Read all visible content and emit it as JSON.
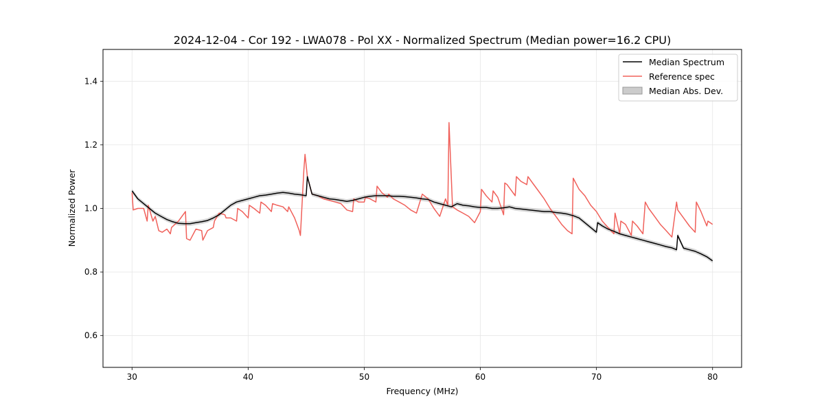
{
  "chart_data": {
    "type": "line",
    "title": "2024-12-04 - Cor 192 - LWA078 - Pol XX - Normalized Spectrum (Median power=16.2 CPU)",
    "xlabel": "Frequency (MHz)",
    "ylabel": "Normalized Power",
    "xlim": [
      27.5,
      82.5
    ],
    "ylim": [
      0.5,
      1.5
    ],
    "xticks": [
      30,
      40,
      50,
      60,
      70,
      80
    ],
    "yticks": [
      0.6,
      0.8,
      1.0,
      1.2,
      1.4
    ],
    "xtick_labels": [
      "30",
      "40",
      "50",
      "60",
      "70",
      "80"
    ],
    "ytick_labels": [
      "0.6",
      "0.8",
      "1.0",
      "1.2",
      "1.4"
    ],
    "grid": true,
    "legend_position": "top-right",
    "legend": [
      "Median Spectrum",
      "Reference spec",
      "Median Abs. Dev."
    ],
    "series": [
      {
        "name": "Median Spectrum",
        "color": "#000000",
        "x": [
          30,
          30.5,
          31,
          31.5,
          32,
          32.5,
          33,
          33.5,
          34,
          34.5,
          35,
          35.5,
          36,
          36.5,
          37,
          37.5,
          38,
          38.5,
          39,
          39.5,
          40,
          40.5,
          41,
          41.5,
          42,
          42.5,
          43,
          43.5,
          44,
          44.5,
          45,
          45.1,
          45.5,
          46,
          46.5,
          47,
          47.5,
          48,
          48.5,
          49,
          49.5,
          50,
          50.5,
          51,
          51.5,
          52,
          52.5,
          53,
          53.5,
          54,
          54.5,
          55,
          55.5,
          56,
          56.5,
          57,
          57.5,
          58,
          58.5,
          59,
          59.5,
          60,
          60.5,
          61,
          61.5,
          62,
          62.5,
          63,
          63.5,
          64,
          64.5,
          65,
          65.5,
          66,
          66.5,
          67,
          67.5,
          68,
          68.5,
          69,
          69.5,
          70,
          70.1,
          70.5,
          71,
          71.5,
          72,
          72.5,
          73,
          73.5,
          74,
          74.5,
          75,
          75.5,
          76,
          76.5,
          76.9,
          77,
          77.5,
          78,
          78.5,
          79,
          79.5,
          80
        ],
        "values": [
          1.055,
          1.03,
          1.015,
          1.0,
          0.985,
          0.975,
          0.965,
          0.958,
          0.953,
          0.952,
          0.952,
          0.955,
          0.958,
          0.962,
          0.97,
          0.98,
          0.995,
          1.01,
          1.02,
          1.025,
          1.03,
          1.035,
          1.04,
          1.042,
          1.045,
          1.048,
          1.05,
          1.048,
          1.045,
          1.043,
          1.04,
          1.1,
          1.045,
          1.04,
          1.035,
          1.03,
          1.028,
          1.025,
          1.022,
          1.025,
          1.03,
          1.035,
          1.038,
          1.04,
          1.04,
          1.04,
          1.038,
          1.038,
          1.037,
          1.035,
          1.033,
          1.03,
          1.028,
          1.02,
          1.015,
          1.01,
          1.005,
          1.015,
          1.01,
          1.008,
          1.005,
          1.003,
          1.003,
          1.0,
          1.0,
          1.002,
          1.005,
          1.0,
          0.998,
          0.996,
          0.994,
          0.992,
          0.99,
          0.99,
          0.987,
          0.985,
          0.982,
          0.977,
          0.97,
          0.955,
          0.94,
          0.925,
          0.955,
          0.945,
          0.935,
          0.928,
          0.92,
          0.915,
          0.91,
          0.905,
          0.9,
          0.895,
          0.89,
          0.885,
          0.88,
          0.876,
          0.87,
          0.915,
          0.875,
          0.87,
          0.865,
          0.857,
          0.848,
          0.835
        ]
      },
      {
        "name": "Reference spec",
        "color": "#f0605a",
        "x": [
          30,
          30.1,
          30.5,
          31,
          31.3,
          31.4,
          31.8,
          32,
          32.3,
          32.6,
          33,
          33.3,
          33.4,
          34,
          34.6,
          34.7,
          35,
          35.5,
          36,
          36.1,
          36.5,
          37,
          37.1,
          37.5,
          38,
          38.1,
          38.5,
          39,
          39.1,
          39.5,
          40,
          40.1,
          40.5,
          41,
          41.1,
          41.5,
          42,
          42.1,
          42.5,
          43,
          43.4,
          43.5,
          44,
          44.4,
          44.5,
          44.8,
          44.9,
          45.1,
          45.5,
          46,
          46.5,
          47,
          47.5,
          48,
          48.5,
          49,
          49.1,
          49.5,
          50,
          50.1,
          50.5,
          51,
          51.1,
          51.5,
          52,
          52.1,
          52.5,
          53,
          53.5,
          54,
          54.5,
          55,
          55.5,
          56,
          56.5,
          57,
          57.2,
          57.3,
          57.6,
          58,
          58.5,
          59,
          59.5,
          60,
          60.1,
          60.5,
          61,
          61.1,
          61.5,
          62,
          62.1,
          62.3,
          62.5,
          63,
          63.1,
          63.5,
          64,
          64.1,
          64.5,
          65,
          65.5,
          66,
          66.5,
          67,
          67.5,
          67.9,
          68,
          68.5,
          69,
          69.5,
          70,
          70.5,
          71,
          71.5,
          71.6,
          72,
          72.1,
          72.5,
          73,
          73.1,
          73.5,
          74,
          74.2,
          74.5,
          75,
          75.5,
          76,
          76.5,
          76.9,
          77,
          77.5,
          78,
          78.5,
          78.6,
          79,
          79.5,
          79.6,
          80
        ],
        "values": [
          1.05,
          0.995,
          1.0,
          1.0,
          0.96,
          1.01,
          0.96,
          0.975,
          0.93,
          0.925,
          0.935,
          0.92,
          0.94,
          0.96,
          0.99,
          0.905,
          0.9,
          0.935,
          0.93,
          0.9,
          0.93,
          0.94,
          0.96,
          0.985,
          0.98,
          0.97,
          0.97,
          0.96,
          1.0,
          0.99,
          0.97,
          1.01,
          1.0,
          0.985,
          1.02,
          1.01,
          0.99,
          1.015,
          1.01,
          1.005,
          0.99,
          1.005,
          0.97,
          0.93,
          0.915,
          1.12,
          1.17,
          1.1,
          1.045,
          1.04,
          1.03,
          1.025,
          1.02,
          1.015,
          0.995,
          0.99,
          1.03,
          1.02,
          1.02,
          1.035,
          1.03,
          1.02,
          1.07,
          1.05,
          1.035,
          1.045,
          1.03,
          1.02,
          1.01,
          0.995,
          0.985,
          1.045,
          1.03,
          1.0,
          0.975,
          1.03,
          1.01,
          1.27,
          1.005,
          0.995,
          0.985,
          0.975,
          0.955,
          0.99,
          1.06,
          1.04,
          1.02,
          1.055,
          1.035,
          0.98,
          1.08,
          1.075,
          1.065,
          1.04,
          1.1,
          1.085,
          1.075,
          1.1,
          1.08,
          1.055,
          1.03,
          1.0,
          0.975,
          0.95,
          0.93,
          0.92,
          1.095,
          1.06,
          1.04,
          1.01,
          0.99,
          0.96,
          0.94,
          0.92,
          0.985,
          0.92,
          0.96,
          0.95,
          0.915,
          0.96,
          0.945,
          0.92,
          1.02,
          1.0,
          0.975,
          0.95,
          0.93,
          0.91,
          1.02,
          0.995,
          0.97,
          0.945,
          0.925,
          1.02,
          0.99,
          0.945,
          0.96,
          0.95
        ]
      }
    ]
  }
}
